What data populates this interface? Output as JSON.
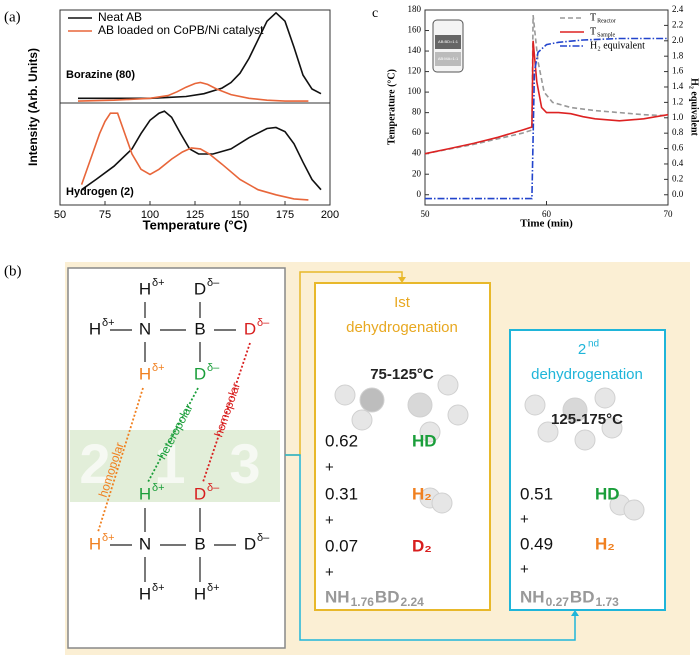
{
  "panel_labels": {
    "a": "(a)",
    "b": "(b)",
    "c": "c"
  },
  "chart_data": [
    {
      "type": "line",
      "ylabel": "Intensity (Arb. Units)",
      "annotation": "Borazine (80)",
      "legend": "upper left",
      "xlim": [
        50,
        200
      ],
      "ylim": [
        0,
        1
      ],
      "series": [
        {
          "name": "Neat AB",
          "color": "#111111",
          "x": [
            60,
            70,
            80,
            90,
            100,
            110,
            120,
            130,
            140,
            145,
            150,
            155,
            160,
            165,
            170,
            175,
            180,
            185,
            190,
            195
          ],
          "values": [
            0.05,
            0.05,
            0.05,
            0.05,
            0.05,
            0.06,
            0.07,
            0.1,
            0.16,
            0.22,
            0.32,
            0.48,
            0.68,
            0.88,
            0.97,
            0.88,
            0.6,
            0.3,
            0.15,
            0.1
          ]
        },
        {
          "name": "AB loaded on CoPB/Ni catalyst",
          "color": "#e8663a",
          "x": [
            60,
            80,
            100,
            110,
            115,
            120,
            125,
            128,
            132,
            137,
            145,
            155,
            165,
            175,
            188
          ],
          "values": [
            0.02,
            0.03,
            0.05,
            0.08,
            0.12,
            0.17,
            0.21,
            0.22,
            0.2,
            0.15,
            0.09,
            0.05,
            0.03,
            0.02,
            0.02
          ]
        }
      ]
    },
    {
      "type": "line",
      "xlabel": "Temperature (°C)",
      "annotation": "Hydrogen (2)",
      "xlim": [
        50,
        200
      ],
      "xticks": [
        50,
        75,
        100,
        125,
        150,
        175,
        200
      ],
      "ylim": [
        0,
        1
      ],
      "series": [
        {
          "name": "Neat AB",
          "color": "#111111",
          "x": [
            62,
            70,
            80,
            90,
            95,
            100,
            105,
            108,
            112,
            117,
            122,
            127,
            135,
            145,
            155,
            165,
            170,
            175,
            180,
            185,
            190,
            195
          ],
          "values": [
            0.15,
            0.25,
            0.38,
            0.55,
            0.7,
            0.83,
            0.9,
            0.92,
            0.86,
            0.7,
            0.55,
            0.5,
            0.5,
            0.55,
            0.66,
            0.75,
            0.76,
            0.72,
            0.6,
            0.42,
            0.25,
            0.15
          ]
        },
        {
          "name": "AB loaded on CoPB/Ni catalyst",
          "color": "#e8663a",
          "x": [
            62,
            67,
            72,
            75,
            78,
            82,
            86,
            90,
            95,
            100,
            105,
            112,
            118,
            123,
            128,
            133,
            140,
            150,
            160,
            170,
            180,
            188
          ],
          "values": [
            0.2,
            0.45,
            0.7,
            0.82,
            0.9,
            0.9,
            0.7,
            0.5,
            0.35,
            0.3,
            0.35,
            0.45,
            0.52,
            0.56,
            0.55,
            0.5,
            0.4,
            0.25,
            0.15,
            0.1,
            0.06,
            0.05
          ]
        }
      ]
    },
    {
      "type": "line",
      "xlabel": "Time (min)",
      "ylabel": "Temperature (°C)",
      "y2label": "H₂ equivalent",
      "legend": "upper right",
      "inset": [
        "AB:BD=1:1",
        "AB:MA=1:1"
      ],
      "xlim": [
        50,
        70
      ],
      "xticks": [
        50,
        60,
        70
      ],
      "ylim": [
        -10,
        180
      ],
      "yticks": [
        0,
        20,
        40,
        60,
        80,
        100,
        120,
        140,
        160,
        180
      ],
      "y2lim": [
        -0.133,
        2.4
      ],
      "y2ticks": [
        {
          "value": 0,
          "label": "0.0"
        },
        0.2,
        0.4,
        0.6,
        0.8,
        {
          "value": 1,
          "label": "1.0"
        },
        1.2,
        1.4,
        1.6,
        1.8,
        {
          "value": 2,
          "label": "2.0"
        },
        2.2,
        2.4
      ],
      "series": [
        {
          "name": "T",
          "name_sub": "Reactor",
          "color": "#999999",
          "dash": "dashed",
          "x": [
            50,
            54,
            58,
            58.8,
            58.9,
            59.3,
            59.8,
            60.5,
            62,
            64,
            66,
            68,
            70
          ],
          "values": [
            40,
            49,
            60,
            63,
            175,
            130,
            100,
            90,
            85,
            82,
            80,
            78,
            77
          ]
        },
        {
          "name": "T",
          "name_sub": "Sample",
          "color": "#dd2222",
          "dash": "solid",
          "x": [
            50,
            52,
            54,
            56,
            58,
            58.8,
            58.9,
            59.2,
            59.6,
            60,
            61,
            62,
            63,
            64,
            65,
            66,
            67,
            68,
            69,
            70
          ],
          "values": [
            40,
            45,
            50,
            56,
            63,
            66,
            150,
            110,
            85,
            80,
            80,
            79,
            76,
            74,
            73,
            72,
            73,
            74,
            76,
            78
          ]
        },
        {
          "name": "H₂ equivalent",
          "color": "#2244cc",
          "dash": "dashdot",
          "axis": "y2",
          "x": [
            50,
            58.8,
            59,
            59.3,
            60,
            61,
            63,
            66,
            70
          ],
          "values": [
            -0.05,
            -0.05,
            1.6,
            1.85,
            1.95,
            1.98,
            2.01,
            2.03,
            2.03
          ]
        }
      ]
    }
  ],
  "diagram": {
    "atoms": [
      {
        "symbol": "H",
        "charge": "δ+",
        "color": "#111111"
      },
      {
        "symbol": "D",
        "charge": "δ–",
        "color": "#111111"
      },
      {
        "symbol": "H",
        "charge": "δ+",
        "color": "#111111"
      },
      {
        "symbol": "N",
        "color": "#111111"
      },
      {
        "symbol": "B",
        "color": "#111111"
      },
      {
        "symbol": "D",
        "charge": "δ–",
        "color": "#d81e1e"
      },
      {
        "symbol": "H",
        "charge": "δ+",
        "color": "#f08020"
      },
      {
        "symbol": "D",
        "charge": "δ–",
        "color": "#1a9e3a"
      },
      {
        "symbol": "H",
        "charge": "δ+",
        "color": "#1a9e3a"
      },
      {
        "symbol": "D",
        "charge": "δ–",
        "color": "#d81e1e"
      },
      {
        "symbol": "H",
        "charge": "δ+",
        "color": "#f08020"
      },
      {
        "symbol": "N",
        "color": "#111111"
      },
      {
        "symbol": "B",
        "color": "#111111"
      },
      {
        "symbol": "D",
        "charge": "δ–",
        "color": "#111111"
      },
      {
        "symbol": "H",
        "charge": "δ+",
        "color": "#111111"
      },
      {
        "symbol": "H",
        "charge": "δ+",
        "color": "#111111"
      }
    ],
    "bond_labels": [
      {
        "text": "homopolar",
        "color": "#f08020"
      },
      {
        "text": "heteropolar",
        "color": "#1a9e3a"
      },
      {
        "text": "homopolar",
        "color": "#d81e1e"
      }
    ],
    "watermark": [
      "2",
      "1",
      "3"
    ],
    "steps": [
      {
        "ordinal": "Ist",
        "title": "dehydrogenation",
        "color": "#e8a820",
        "temperature": "75-125°C",
        "plus": "+",
        "products": [
          {
            "coef": 0.62,
            "species": "HD",
            "color": "#1a9e3a"
          },
          {
            "coef": 0.31,
            "species": "H₂",
            "color": "#f08020"
          },
          {
            "coef": 0.07,
            "species": "D₂",
            "color": "#d81e1e"
          }
        ],
        "formula": [
          "NH",
          "1.76",
          "BD",
          "2.24"
        ]
      },
      {
        "ordinal": "2",
        "ordinal_sup": "nd",
        "title": "dehydrogenation",
        "color": "#1fb5d9",
        "temperature": "125-175°C",
        "plus": "+",
        "products": [
          {
            "coef": 0.51,
            "species": "HD",
            "color": "#1a9e3a"
          },
          {
            "coef": 0.49,
            "species": "H₂",
            "color": "#f08020"
          }
        ],
        "formula": [
          "NH",
          "0.27",
          "BD",
          "1.73"
        ]
      }
    ]
  }
}
